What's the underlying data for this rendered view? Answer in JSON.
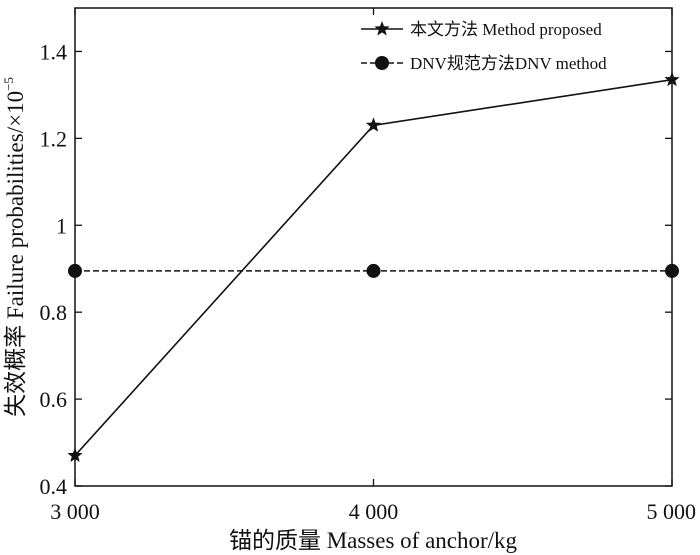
{
  "chart_data": {
    "type": "line",
    "title": "",
    "xlabel": "锚的质量 Masses of anchor/kg",
    "ylabel": "失效概率 Failure probabilities/×10",
    "ylabel_exponent": "−5",
    "x": [
      3000,
      4000,
      5000
    ],
    "x_tick_labels": [
      "3 000",
      "4 000",
      "5 000"
    ],
    "xlim": [
      3000,
      5000
    ],
    "ylim": [
      0.4,
      1.5
    ],
    "y_ticks": [
      0.4,
      0.6,
      0.8,
      1.0,
      1.2,
      1.4
    ],
    "y_tick_labels": [
      "0.4",
      "0.6",
      "0.8",
      "1",
      "1.2",
      "1.4"
    ],
    "grid": false,
    "legend_position": "top-right",
    "series": [
      {
        "name": "本文方法 Method proposed",
        "values": [
          0.47,
          1.23,
          1.335
        ],
        "marker": "star",
        "line_style": "solid",
        "color": "#111111"
      },
      {
        "name": "DNV规范方法DNV method",
        "values": [
          0.895,
          0.895,
          0.895
        ],
        "marker": "circle",
        "line_style": "dashed",
        "color": "#111111"
      }
    ]
  }
}
